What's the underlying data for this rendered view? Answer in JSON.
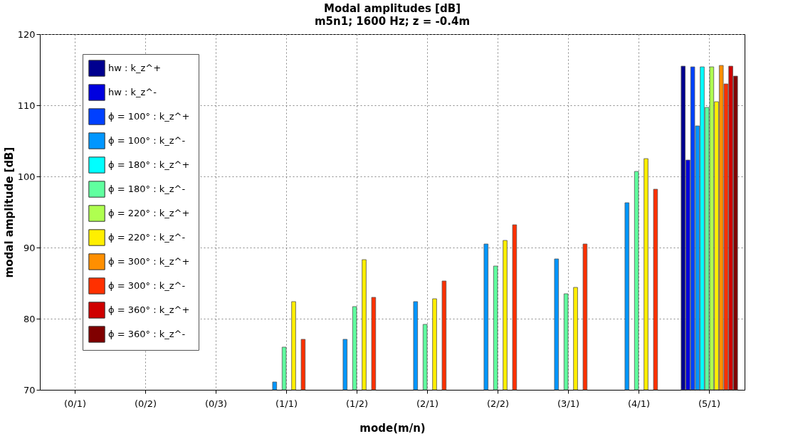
{
  "chart_data": {
    "type": "bar",
    "title": "Modal amplitudes [dB]",
    "subtitle": "m5n1; 1600 Hz; z = -0.4m",
    "xlabel": "mode(m/n)",
    "ylabel": "modal amplitude [dB]",
    "categories": [
      "(0/1)",
      "(0/2)",
      "(0/3)",
      "(1/1)",
      "(1/2)",
      "(2/1)",
      "(2/2)",
      "(3/1)",
      "(4/1)",
      "(5/1)"
    ],
    "series": [
      {
        "name": "hw :   k_z^+",
        "color": "#00008f",
        "values": [
          null,
          null,
          null,
          null,
          null,
          null,
          null,
          null,
          null,
          115.5
        ]
      },
      {
        "name": "hw :   k_z^-",
        "color": "#0000df",
        "values": [
          null,
          null,
          null,
          null,
          null,
          null,
          null,
          null,
          null,
          102.3
        ]
      },
      {
        "name": "ϕ = 100° :  k_z^+",
        "color": "#0040ff",
        "values": [
          null,
          null,
          null,
          null,
          null,
          null,
          null,
          null,
          null,
          115.4
        ]
      },
      {
        "name": "ϕ = 100° :  k_z^-",
        "color": "#0096ff",
        "values": [
          null,
          null,
          null,
          71.1,
          77.1,
          82.4,
          90.5,
          88.4,
          96.3,
          107.1
        ]
      },
      {
        "name": "ϕ = 180° :  k_z^+",
        "color": "#00ffff",
        "values": [
          null,
          null,
          null,
          null,
          null,
          null,
          null,
          null,
          null,
          115.4
        ]
      },
      {
        "name": "ϕ = 180° :  k_z^-",
        "color": "#60ff9f",
        "values": [
          null,
          null,
          null,
          76.0,
          81.7,
          79.2,
          87.4,
          83.5,
          100.7,
          109.7
        ]
      },
      {
        "name": "ϕ = 220° :  k_z^+",
        "color": "#afff50",
        "values": [
          null,
          null,
          null,
          null,
          null,
          null,
          null,
          null,
          null,
          115.4
        ]
      },
      {
        "name": "ϕ = 220° :  k_z^-",
        "color": "#ffef00",
        "values": [
          null,
          null,
          null,
          82.4,
          88.3,
          82.8,
          91.0,
          84.4,
          102.5,
          110.5
        ]
      },
      {
        "name": "ϕ = 300° :  k_z^+",
        "color": "#ff8f00",
        "values": [
          null,
          null,
          null,
          null,
          null,
          null,
          null,
          null,
          null,
          115.6
        ]
      },
      {
        "name": "ϕ = 300° :  k_z^-",
        "color": "#ff3000",
        "values": [
          null,
          null,
          null,
          77.1,
          83.0,
          85.3,
          93.2,
          90.5,
          98.2,
          113.0
        ]
      },
      {
        "name": "ϕ = 360° :  k_z^+",
        "color": "#cf0000",
        "values": [
          null,
          null,
          null,
          null,
          null,
          null,
          null,
          null,
          null,
          115.5
        ]
      },
      {
        "name": "ϕ = 360° :  k_z^-",
        "color": "#800000",
        "values": [
          null,
          null,
          null,
          null,
          null,
          null,
          null,
          null,
          null,
          114.1
        ]
      }
    ],
    "ylim": [
      70,
      120
    ],
    "yticks": [
      70,
      80,
      90,
      100,
      110,
      120
    ],
    "grid": true,
    "legend": "top left"
  }
}
